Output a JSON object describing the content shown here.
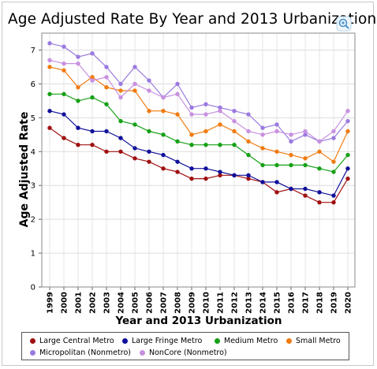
{
  "chart_data": {
    "type": "line",
    "title": "Age Adjusted Rate By Year and 2013 Urbanization",
    "xlabel": "Year and 2013 Urbanization",
    "ylabel": "Age Adjusted Rate",
    "x": [
      "1999",
      "2000",
      "2001",
      "2002",
      "2003",
      "2004",
      "2005",
      "2006",
      "2007",
      "2008",
      "2009",
      "2010",
      "2011",
      "2012",
      "2013",
      "2014",
      "2015",
      "2016",
      "2017",
      "2018",
      "2019",
      "2020"
    ],
    "ylim": [
      0,
      7.5
    ],
    "yticks": [
      "0",
      "1",
      "2",
      "3",
      "4",
      "5",
      "6",
      "7"
    ],
    "grid": true,
    "legend_position": "bottom",
    "series": [
      {
        "name": "Large Central Metro",
        "color": "#a01010",
        "values": [
          4.7,
          4.4,
          4.2,
          4.2,
          4.0,
          4.0,
          3.8,
          3.7,
          3.5,
          3.4,
          3.2,
          3.2,
          3.3,
          3.3,
          3.2,
          3.1,
          2.8,
          2.9,
          2.7,
          2.5,
          2.5,
          3.2
        ]
      },
      {
        "name": "Large Fringe Metro",
        "color": "#10109a",
        "values": [
          5.2,
          5.1,
          4.7,
          4.6,
          4.6,
          4.4,
          4.1,
          4.0,
          3.9,
          3.7,
          3.5,
          3.5,
          3.4,
          3.3,
          3.3,
          3.1,
          3.1,
          2.9,
          2.9,
          2.8,
          2.7,
          3.5
        ]
      },
      {
        "name": "Medium Metro",
        "color": "#16a016",
        "values": [
          5.7,
          5.7,
          5.5,
          5.6,
          5.4,
          4.9,
          4.8,
          4.6,
          4.5,
          4.3,
          4.2,
          4.2,
          4.2,
          4.2,
          3.9,
          3.6,
          3.6,
          3.6,
          3.6,
          3.5,
          3.4,
          3.9
        ]
      },
      {
        "name": "Small Metro",
        "color": "#f07b10",
        "values": [
          6.5,
          6.4,
          5.9,
          6.2,
          5.9,
          5.8,
          5.8,
          5.2,
          5.2,
          5.1,
          4.5,
          4.6,
          4.8,
          4.6,
          4.3,
          4.1,
          4.0,
          3.9,
          3.8,
          4.0,
          3.7,
          4.6
        ]
      },
      {
        "name": "Micropolitan (Nonmetro)",
        "color": "#9a7ae0",
        "values": [
          7.2,
          7.1,
          6.8,
          6.9,
          6.5,
          6.0,
          6.5,
          6.1,
          5.6,
          6.0,
          5.3,
          5.4,
          5.3,
          5.2,
          5.1,
          4.7,
          4.8,
          4.3,
          4.5,
          4.3,
          4.4,
          4.9
        ]
      },
      {
        "name": "NonCore (Nonmetro)",
        "color": "#c890e0",
        "values": [
          6.7,
          6.6,
          6.6,
          6.1,
          6.2,
          5.6,
          6.0,
          5.8,
          5.6,
          5.7,
          5.1,
          5.1,
          5.2,
          4.9,
          4.6,
          4.5,
          4.6,
          4.5,
          4.6,
          4.3,
          4.6,
          5.2
        ]
      }
    ]
  },
  "ui": {
    "zoom_icon": "magnify-plus-icon"
  }
}
